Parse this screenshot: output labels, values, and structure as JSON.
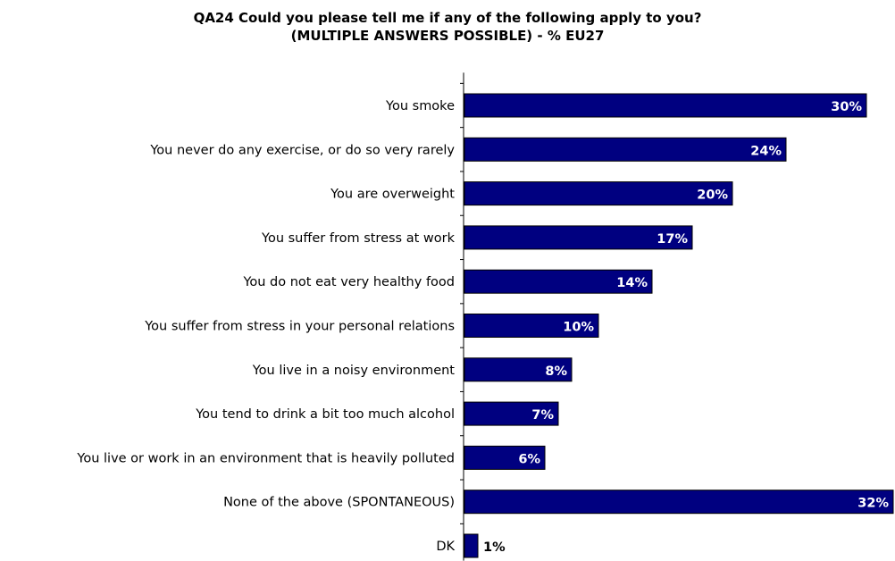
{
  "chart_data": {
    "type": "bar",
    "orientation": "horizontal",
    "title": "QA24 Could you please tell me if any of the following apply to you?",
    "subtitle": "(MULTIPLE ANSWERS POSSIBLE) - % EU27",
    "categories": [
      "You smoke",
      "You never do any exercise, or do so very rarely",
      "You are overweight",
      "You suffer from stress at work",
      "You do not eat very healthy food",
      "You suffer from stress in your personal relations",
      "You live in a noisy environment",
      "You tend to drink a bit too much alcohol",
      "You live or work in an environment that is heavily polluted",
      "None of the above (SPONTANEOUS)",
      "DK"
    ],
    "values": [
      30,
      24,
      20,
      17,
      14,
      10,
      8,
      7,
      6,
      32,
      1
    ],
    "value_labels": [
      "30%",
      "24%",
      "20%",
      "17%",
      "14%",
      "10%",
      "8%",
      "7%",
      "6%",
      "32%",
      "1%"
    ],
    "xlim": [
      0,
      32
    ],
    "bar_color": "#000080",
    "label_color_inside": "#ffffff",
    "label_color_outside": "#000000",
    "grid": false,
    "legend": false
  }
}
